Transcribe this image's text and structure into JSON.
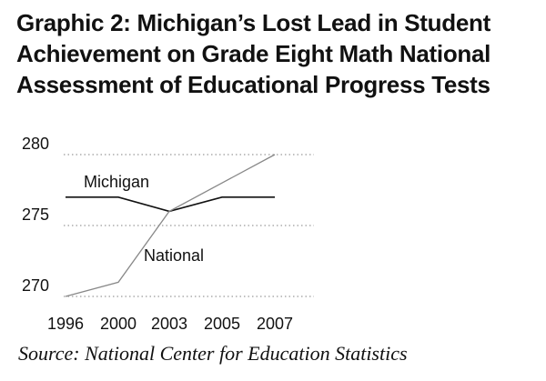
{
  "title": "Graphic 2: Michigan’s Lost Lead in Student Achievement on Grade Eight Math National Assessment of Educational Progress Tests",
  "source": "Source: National Center for Education Statistics",
  "chart_data": {
    "type": "line",
    "title": "Graphic 2: Michigan’s Lost Lead in Student Achievement on Grade Eight Math National Assessment of Educational Progress Tests",
    "xlabel": "",
    "ylabel": "",
    "categories": [
      "1996",
      "2000",
      "2003",
      "2005",
      "2007"
    ],
    "ylim": [
      270,
      280
    ],
    "yticks": [
      270,
      275,
      280
    ],
    "grid": "horizontal dotted",
    "legend": "none (direct labels)",
    "series": [
      {
        "name": "Michigan",
        "values": [
          277,
          277,
          276,
          277,
          277
        ],
        "color": "#111111"
      },
      {
        "name": "National",
        "values": [
          270,
          271,
          276,
          278,
          280
        ],
        "color": "#888888"
      }
    ]
  }
}
